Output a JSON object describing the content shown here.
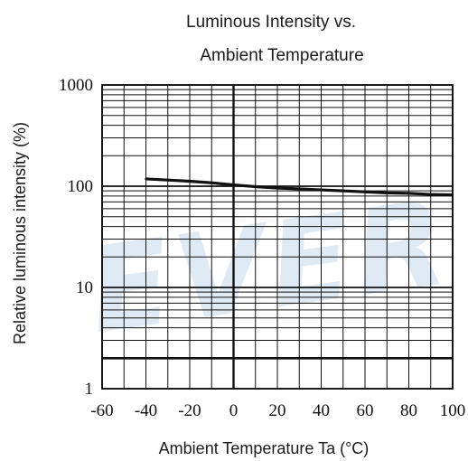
{
  "chart_data": {
    "type": "line",
    "title_line1": "Luminous Intensity vs.",
    "title_line2": "Ambient Temperature",
    "xlabel": "Ambient Temperature Ta (°C)",
    "ylabel": "Relative luminous intensity   (%)",
    "xlim": [
      -60,
      100
    ],
    "ylim": [
      1,
      1000
    ],
    "yscale": "log",
    "grid": true,
    "x_ticks": [
      "-60",
      "-40",
      "-20",
      "0",
      "20",
      "40",
      "60",
      "80",
      "100"
    ],
    "y_ticks": [
      "1",
      "10",
      "100",
      "1000"
    ],
    "series": [
      {
        "x": [
          -40,
          -30,
          -20,
          -10,
          0,
          10,
          20,
          30,
          40,
          50,
          60,
          70,
          80,
          90,
          100
        ],
        "y": [
          118,
          115,
          112,
          108,
          103,
          99,
          96,
          94,
          92,
          90,
          88,
          86,
          85,
          83,
          82
        ]
      }
    ],
    "line_color": "#111111",
    "grid_color": "#111111",
    "watermark": "EVER",
    "watermark_color": "#d3e2f2"
  }
}
